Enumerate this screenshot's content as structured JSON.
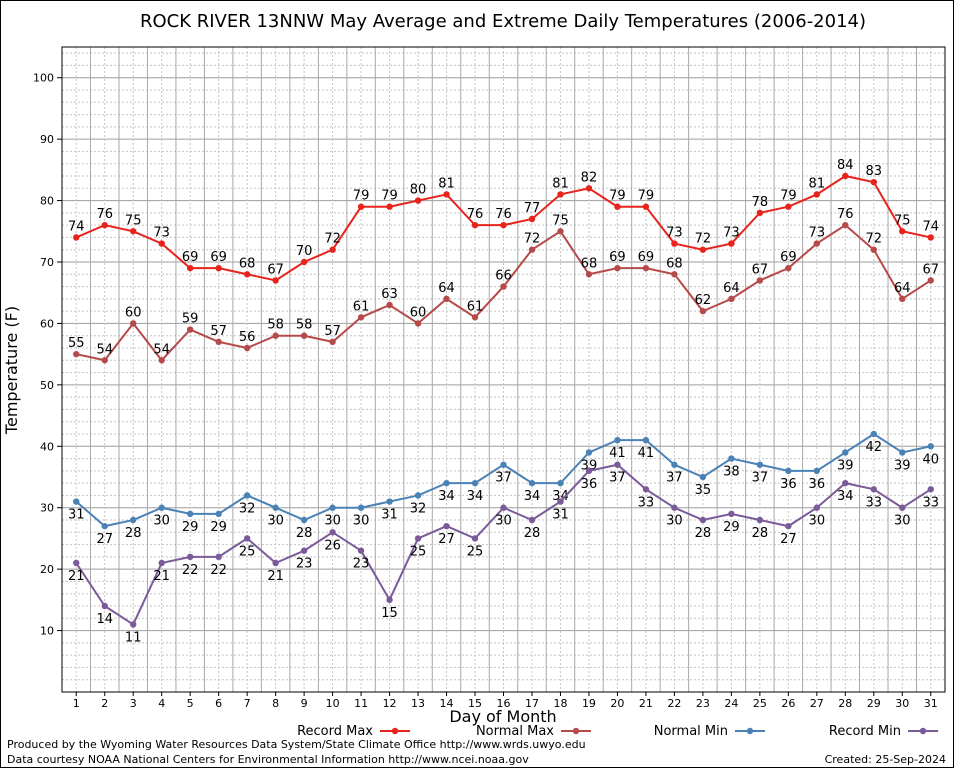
{
  "footer": {
    "produced_by": "Produced by the Wyoming Water Resources Data System/State Climate Office http://www.wrds.uwyo.edu",
    "courtesy": "Data courtesy NOAA National Centers for Environmental Information http://www.ncei.noaa.gov",
    "created": "Created:  25-Sep-2024"
  },
  "chart_data": {
    "type": "line",
    "title": "ROCK RIVER 13NNW May Average and Extreme Daily Temperatures (2006-2014)",
    "xlabel": "Day of Month",
    "ylabel": "Temperature (F)",
    "ylim": [
      0,
      105
    ],
    "yticks": [
      10,
      20,
      30,
      40,
      50,
      60,
      70,
      80,
      90,
      100
    ],
    "grid": true,
    "legend_position": "bottom",
    "x": [
      1,
      2,
      3,
      4,
      5,
      6,
      7,
      8,
      9,
      10,
      11,
      12,
      13,
      14,
      15,
      16,
      17,
      18,
      19,
      20,
      21,
      22,
      23,
      24,
      25,
      26,
      27,
      28,
      29,
      30,
      31
    ],
    "series": [
      {
        "name": "Record Max",
        "color": "#e8231b",
        "label_position": "above",
        "values": [
          74,
          76,
          75,
          73,
          69,
          69,
          68,
          67,
          70,
          72,
          79,
          79,
          80,
          81,
          76,
          76,
          77,
          81,
          82,
          79,
          79,
          73,
          72,
          73,
          78,
          79,
          81,
          84,
          83,
          75,
          74
        ]
      },
      {
        "name": "Normal Max",
        "color": "#b64a4a",
        "label_position": "above",
        "values": [
          55,
          54,
          60,
          54,
          59,
          57,
          56,
          58,
          58,
          57,
          61,
          63,
          60,
          64,
          61,
          66,
          72,
          75,
          68,
          69,
          69,
          68,
          62,
          64,
          67,
          69,
          73,
          76,
          72,
          64,
          67
        ]
      },
      {
        "name": "Normal Min",
        "color": "#4a82b6",
        "label_position": "below",
        "values": [
          31,
          27,
          28,
          30,
          29,
          29,
          32,
          30,
          28,
          30,
          30,
          31,
          32,
          34,
          34,
          37,
          34,
          34,
          39,
          41,
          41,
          37,
          35,
          38,
          37,
          36,
          36,
          39,
          42,
          39,
          40
        ]
      },
      {
        "name": "Record Min",
        "color": "#7a5a99",
        "label_position": "below",
        "values": [
          21,
          14,
          11,
          21,
          22,
          22,
          25,
          21,
          23,
          26,
          23,
          15,
          25,
          27,
          25,
          30,
          28,
          31,
          36,
          37,
          33,
          30,
          28,
          29,
          28,
          27,
          30,
          34,
          33,
          30,
          33
        ]
      }
    ]
  }
}
